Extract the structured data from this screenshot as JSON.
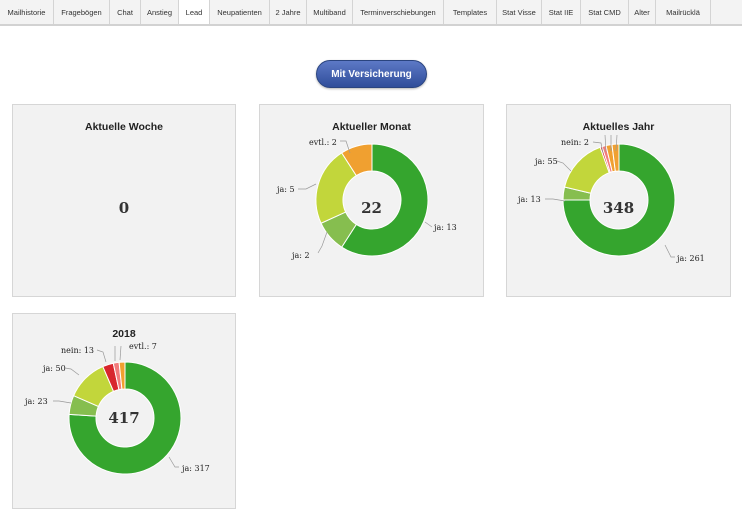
{
  "tabs": [
    "Mailhistorie",
    "Fragebögen",
    "Chat",
    "Anstieg",
    "Lead",
    "Neupatienten",
    "2 Jahre",
    "Multiband",
    "Terminverschiebungen",
    "Templates",
    "Stat Visse",
    "Stat IIE",
    "Stat CMD",
    "Alter",
    "Mailrücklä"
  ],
  "active_tab": "Lead",
  "action_button": "Mit Versicherung",
  "colors": {
    "green": "#35a52e",
    "lightgreen": "#86be4f",
    "yellowgreen": "#c2d63b",
    "orange": "#f0a030",
    "red": "#d8262d",
    "pink": "#f27b7b"
  },
  "chart_data": [
    {
      "type": "pie",
      "title": "Aktuelle Woche",
      "center_value": "0",
      "categories": [],
      "values": []
    },
    {
      "type": "pie",
      "title": "Aktueller Monat",
      "center_value": "22",
      "categories": [
        "ja: 13",
        "ja: 2",
        "ja: 5",
        "evtl.: 2"
      ],
      "values": [
        13,
        2,
        5,
        2
      ]
    },
    {
      "type": "pie",
      "title": "Aktuelles Jahr",
      "center_value": "348",
      "categories": [
        "ja: 261",
        "ja: 13",
        "ja: 55",
        "nein: 2",
        "",
        "",
        ""
      ],
      "values": [
        261,
        13,
        55,
        2,
        4,
        6,
        7
      ]
    },
    {
      "type": "pie",
      "title": "2018",
      "center_value": "417",
      "categories": [
        "ja: 317",
        "ja: 23",
        "ja: 50",
        "nein: 13",
        "",
        "evtl.: 7"
      ],
      "values": [
        317,
        23,
        50,
        13,
        7,
        7
      ]
    }
  ]
}
